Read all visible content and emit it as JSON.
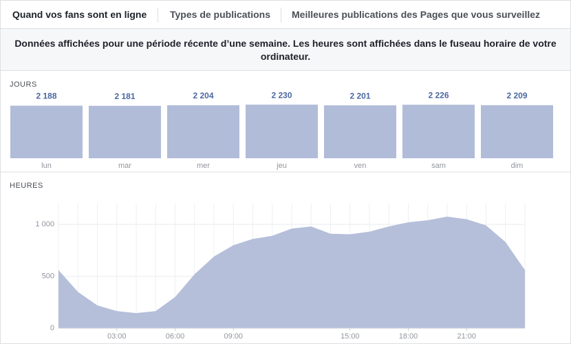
{
  "tabs": [
    "Quand vos fans sont en ligne",
    "Types de publications",
    "Meilleures publications des Pages que vous surveillez"
  ],
  "note": "Données affichées pour une période récente d’une semaine. Les heures sont affichées dans le fuseau horaire de votre ordinateur.",
  "chart_data": [
    {
      "type": "bar",
      "title": "JOURS",
      "categories": [
        "lun",
        "mar",
        "mer",
        "jeu",
        "ven",
        "sam",
        "dim"
      ],
      "values": [
        2188,
        2181,
        2204,
        2230,
        2201,
        2226,
        2209
      ],
      "value_labels": [
        "2 188",
        "2 181",
        "2 204",
        "2 230",
        "2 201",
        "2 226",
        "2 209"
      ],
      "color": "#b1bcd8",
      "ylim": [
        0,
        2290
      ]
    },
    {
      "type": "area",
      "title": "HEURES",
      "x": [
        0,
        1,
        2,
        3,
        4,
        5,
        6,
        7,
        8,
        9,
        10,
        11,
        12,
        13,
        14,
        15,
        16,
        17,
        18,
        19,
        20,
        21,
        22,
        23,
        24
      ],
      "values": [
        560,
        350,
        220,
        165,
        145,
        165,
        300,
        520,
        690,
        800,
        860,
        890,
        960,
        980,
        910,
        905,
        930,
        980,
        1020,
        1040,
        1075,
        1050,
        990,
        830,
        560
      ],
      "color": "#b1bcd8",
      "xlim": [
        0,
        24
      ],
      "ylim": [
        0,
        1200
      ],
      "xticks": [
        {
          "value": 3,
          "label": "03:00"
        },
        {
          "value": 6,
          "label": "06:00"
        },
        {
          "value": 9,
          "label": "09:00"
        },
        {
          "value": 15,
          "label": "15:00"
        },
        {
          "value": 18,
          "label": "18:00"
        },
        {
          "value": 21,
          "label": "21:00"
        }
      ],
      "yticks": [
        0,
        500,
        {
          "value": 1000,
          "label": "1 000"
        }
      ],
      "grid": true
    }
  ]
}
